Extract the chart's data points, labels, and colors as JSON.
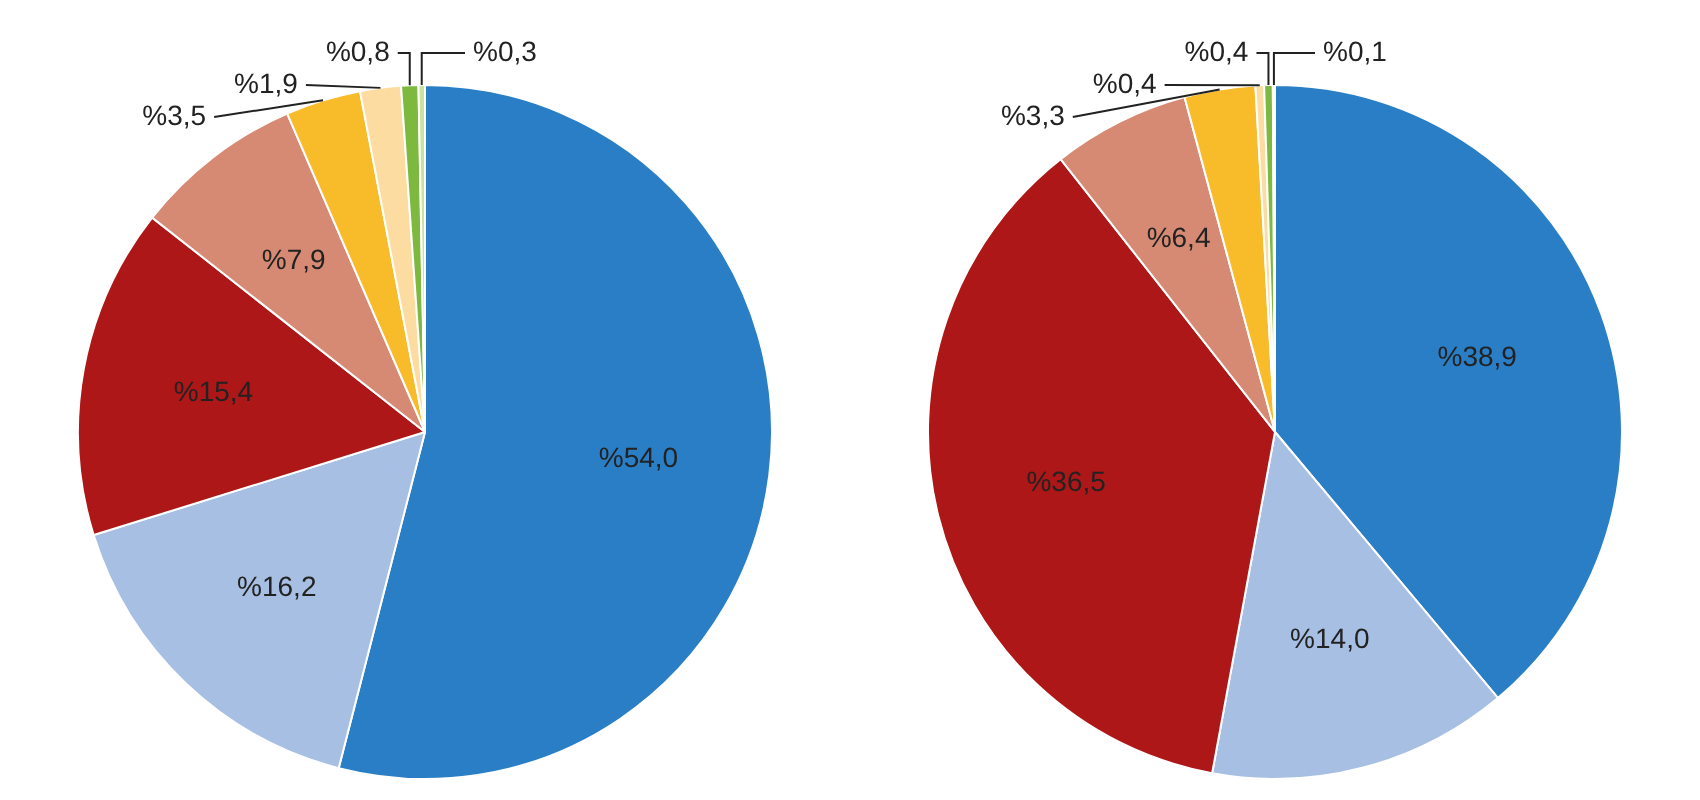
{
  "chart_data": [
    {
      "type": "pie",
      "categories": [
        null,
        null,
        null,
        null,
        null,
        null,
        null,
        null
      ],
      "values": [
        54.0,
        16.2,
        15.4,
        7.9,
        3.5,
        1.9,
        0.8,
        0.3
      ],
      "colors": [
        "#2a7ec5",
        "#a7bfe3",
        "#ad1717",
        "#d78a73",
        "#f8bb2a",
        "#fcdca0",
        "#7cb93e",
        "#c7e3a0"
      ],
      "value_labels": [
        "%54,0",
        "%16,2",
        "%15,4",
        "%7,9",
        "%3,5",
        "%1,9",
        "%0,8",
        "%0,3"
      ],
      "legend": false
    },
    {
      "type": "pie",
      "categories": [
        null,
        null,
        null,
        null,
        null,
        null,
        null,
        null
      ],
      "values": [
        38.9,
        14.0,
        36.5,
        6.4,
        3.3,
        0.4,
        0.4,
        0.1
      ],
      "colors": [
        "#2a7ec5",
        "#a7bfe3",
        "#ad1717",
        "#d78a73",
        "#f8bb2a",
        "#fcdca0",
        "#7cb93e",
        "#c7e3a0"
      ],
      "value_labels": [
        "%38,9",
        "%14,0",
        "%36,5",
        "%6,4",
        "%3,3",
        "%0,4",
        "%0,4",
        "%0,1"
      ],
      "legend": false
    }
  ]
}
